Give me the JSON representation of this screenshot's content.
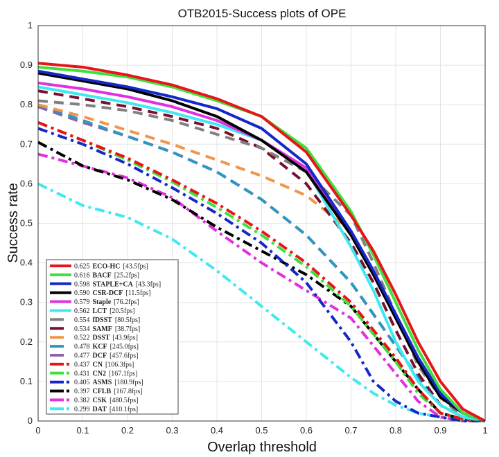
{
  "chart_data": {
    "type": "line",
    "title": "OTB2015-Success plots of OPE",
    "xlabel": "Overlap threshold",
    "ylabel": "Success rate",
    "xlim": [
      0,
      1
    ],
    "ylim": [
      0,
      1
    ],
    "grid": true,
    "legend_placement": "bottom-left",
    "x_ticks": [
      "0",
      "0.1",
      "0.2",
      "0.3",
      "0.4",
      "0.5",
      "0.6",
      "0.7",
      "0.8",
      "0.9",
      "1"
    ],
    "y_ticks": [
      "0",
      "0.1",
      "0.2",
      "0.3",
      "0.4",
      "0.5",
      "0.6",
      "0.7",
      "0.8",
      "0.9",
      "1"
    ],
    "x": [
      0,
      0.1,
      0.2,
      0.3,
      0.4,
      0.5,
      0.6,
      0.7,
      0.75,
      0.8,
      0.85,
      0.9,
      0.95,
      1
    ],
    "series": [
      {
        "name": "ECO-HC",
        "score": "0.625",
        "fps": "[43.5fps]",
        "color": "#e8141a",
        "style": "solid",
        "values": [
          0.905,
          0.895,
          0.875,
          0.85,
          0.815,
          0.77,
          0.68,
          0.52,
          0.43,
          0.32,
          0.2,
          0.1,
          0.03,
          0
        ]
      },
      {
        "name": "BACF",
        "score": "0.616",
        "fps": "[25.2fps]",
        "color": "#3de03a",
        "style": "solid",
        "values": [
          0.895,
          0.885,
          0.87,
          0.845,
          0.81,
          0.77,
          0.69,
          0.53,
          0.42,
          0.3,
          0.18,
          0.08,
          0.02,
          0
        ]
      },
      {
        "name": "STAPLE+CA",
        "score": "0.598",
        "fps": "[43.3fps]",
        "color": "#1428c8",
        "style": "solid",
        "values": [
          0.885,
          0.865,
          0.845,
          0.82,
          0.79,
          0.74,
          0.65,
          0.48,
          0.38,
          0.27,
          0.16,
          0.07,
          0.02,
          0
        ]
      },
      {
        "name": "CSR-DCF",
        "score": "0.590",
        "fps": "[11.5fps]",
        "color": "#000000",
        "style": "solid",
        "values": [
          0.88,
          0.86,
          0.84,
          0.81,
          0.77,
          0.71,
          0.63,
          0.47,
          0.37,
          0.26,
          0.15,
          0.06,
          0.02,
          0
        ]
      },
      {
        "name": "Staple",
        "score": "0.579",
        "fps": "[76.2fps]",
        "color": "#e030e0",
        "style": "solid",
        "values": [
          0.855,
          0.84,
          0.82,
          0.795,
          0.76,
          0.71,
          0.64,
          0.48,
          0.38,
          0.27,
          0.16,
          0.07,
          0.02,
          0
        ]
      },
      {
        "name": "LCT",
        "score": "0.562",
        "fps": "[20.5fps]",
        "color": "#40e8f0",
        "style": "solid",
        "values": [
          0.845,
          0.825,
          0.805,
          0.78,
          0.75,
          0.71,
          0.635,
          0.44,
          0.33,
          0.2,
          0.1,
          0.04,
          0.01,
          0
        ]
      },
      {
        "name": "fDSST",
        "score": "0.554",
        "fps": "[80.5fps]",
        "color": "#808080",
        "style": "dash",
        "values": [
          0.81,
          0.8,
          0.785,
          0.76,
          0.725,
          0.69,
          0.63,
          0.52,
          0.4,
          0.27,
          0.14,
          0.06,
          0.01,
          0
        ]
      },
      {
        "name": "SAMF",
        "score": "0.534",
        "fps": "[38.7fps]",
        "color": "#7a1030",
        "style": "dash",
        "values": [
          0.835,
          0.815,
          0.795,
          0.77,
          0.74,
          0.69,
          0.6,
          0.45,
          0.35,
          0.23,
          0.12,
          0.04,
          0.01,
          0
        ]
      },
      {
        "name": "DSST",
        "score": "0.522",
        "fps": "[43.9fps]",
        "color": "#f0964a",
        "style": "dash",
        "values": [
          0.8,
          0.77,
          0.735,
          0.7,
          0.66,
          0.62,
          0.57,
          0.48,
          0.38,
          0.27,
          0.15,
          0.06,
          0.01,
          0
        ]
      },
      {
        "name": "KCF",
        "score": "0.478",
        "fps": "[245.0fps]",
        "color": "#2a98c0",
        "style": "dash",
        "values": [
          0.8,
          0.76,
          0.72,
          0.68,
          0.63,
          0.56,
          0.47,
          0.35,
          0.27,
          0.19,
          0.11,
          0.04,
          0.01,
          0
        ]
      },
      {
        "name": "DCF",
        "score": "0.477",
        "fps": "[457.6fps]",
        "color": "#9060a8",
        "style": "dash",
        "values": [
          0.795,
          0.755,
          0.72,
          0.68,
          0.63,
          0.56,
          0.47,
          0.35,
          0.27,
          0.19,
          0.11,
          0.04,
          0.01,
          0
        ]
      },
      {
        "name": "CN",
        "score": "0.437",
        "fps": "[106.3fps]",
        "color": "#e8141a",
        "style": "dashdot",
        "values": [
          0.755,
          0.71,
          0.665,
          0.61,
          0.55,
          0.48,
          0.4,
          0.3,
          0.23,
          0.16,
          0.08,
          0.02,
          0.005,
          0
        ]
      },
      {
        "name": "CN2",
        "score": "0.431",
        "fps": "[167.1fps]",
        "color": "#3de03a",
        "style": "dashdot",
        "values": [
          0.755,
          0.71,
          0.66,
          0.605,
          0.54,
          0.47,
          0.39,
          0.29,
          0.22,
          0.15,
          0.07,
          0.02,
          0.005,
          0
        ]
      },
      {
        "name": "ASMS",
        "score": "0.405",
        "fps": "[180.9fps]",
        "color": "#1428c8",
        "style": "dashdot",
        "values": [
          0.74,
          0.7,
          0.65,
          0.59,
          0.525,
          0.45,
          0.35,
          0.2,
          0.1,
          0.05,
          0.02,
          0.01,
          0,
          0
        ]
      },
      {
        "name": "CFLB",
        "score": "0.397",
        "fps": "[167.8fps]",
        "color": "#000000",
        "style": "dashdot",
        "values": [
          0.705,
          0.645,
          0.61,
          0.56,
          0.49,
          0.43,
          0.37,
          0.29,
          0.22,
          0.15,
          0.08,
          0.02,
          0.005,
          0
        ]
      },
      {
        "name": "CSK",
        "score": "0.382",
        "fps": "[480.5fps]",
        "color": "#e030e0",
        "style": "dashdot",
        "values": [
          0.675,
          0.645,
          0.615,
          0.565,
          0.48,
          0.4,
          0.33,
          0.26,
          0.19,
          0.12,
          0.05,
          0.01,
          0,
          0
        ]
      },
      {
        "name": "DAT",
        "score": "0.299",
        "fps": "[410.1fps]",
        "color": "#40e8f0",
        "style": "dashdot",
        "values": [
          0.6,
          0.545,
          0.515,
          0.46,
          0.38,
          0.29,
          0.2,
          0.11,
          0.07,
          0.04,
          0.02,
          0.01,
          0,
          0
        ]
      }
    ]
  }
}
